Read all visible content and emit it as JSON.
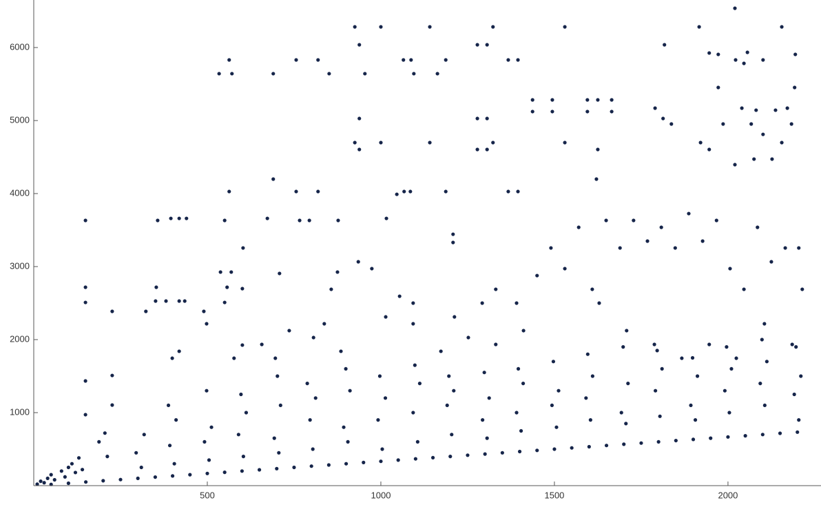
{
  "chart_data": {
    "type": "scatter",
    "color": "#16254a",
    "grid": false,
    "xlim": [
      0,
      2268
    ],
    "ylim": [
      0,
      6651
    ],
    "xticks": [
      500,
      1000,
      1500,
      2000
    ],
    "yticks": [
      1000,
      2000,
      3000,
      4000,
      5000,
      6000
    ],
    "x": [
      149,
      149,
      149,
      149,
      149,
      226,
      226,
      226,
      534,
      563,
      571,
      550,
      563,
      538,
      569,
      557,
      550,
      357,
      395,
      419,
      440,
      353,
      351,
      323,
      381,
      419,
      435,
      490,
      603,
      601,
      601,
      690,
      690,
      708,
      673,
      756,
      819,
      851,
      756,
      819,
      766,
      794,
      877,
      925,
      938,
      954,
      938,
      925,
      938,
      1000,
      1000,
      1016,
      1065,
      1087,
      1095,
      1046,
      1067,
      1085,
      1141,
      1141,
      1163,
      1187,
      1187,
      1208,
      1208,
      1278,
      1306,
      1323,
      1278,
      1306,
      1278,
      1306,
      1323,
      1367,
      1395,
      1367,
      1395,
      1530,
      1530,
      1437,
      1437,
      1494,
      1494,
      1595,
      1595,
      1625,
      1665,
      1665,
      1625,
      1621,
      1817,
      1790,
      1813,
      1837,
      1917,
      1946,
      1972,
      1972,
      1986,
      1921,
      1946,
      2020,
      2020,
      2022,
      2046,
      2056,
      2040,
      2067,
      2081,
      2075,
      2101,
      2101,
      2127,
      2137,
      2155,
      2155,
      2171,
      2183,
      2192,
      2194,
      1054,
      1093,
      935,
      974,
      875,
      857,
      837,
      885,
      806,
      1212,
      1292,
      1331,
      1391,
      1450,
      1490,
      1530,
      1570,
      1609,
      1649,
      1689,
      1728,
      1768,
      1808,
      1848,
      1887,
      1927,
      1967,
      2006,
      2046,
      2085,
      2125,
      2165,
      2204,
      2214,
      1629,
      1708,
      1788,
      1867,
      1946,
      2024,
      2105,
      2185,
      1411,
      1331,
      1252,
      1173,
      1093,
      1014,
      657,
      736,
      696,
      577,
      498,
      419,
      399,
      212,
      188,
      205,
      310,
      295,
      318,
      405,
      392,
      410,
      388,
      505,
      492,
      512,
      498,
      604,
      590,
      612,
      597,
      706,
      693,
      711,
      702,
      804,
      796,
      812,
      788,
      905,
      893,
      911,
      899,
      1004,
      992,
      1013,
      997,
      1106,
      1093,
      1112,
      1098,
      1204,
      1191,
      1210,
      1196,
      1306,
      1293,
      1312,
      1298,
      1404,
      1391,
      1410,
      1396,
      1506,
      1493,
      1512,
      1497,
      1604,
      1591,
      1610,
      1596,
      1706,
      1693,
      1712,
      1698,
      1804,
      1791,
      1810,
      1796,
      1906,
      1893,
      1912,
      1898,
      2004,
      1991,
      2010,
      1996,
      2106,
      2093,
      2112,
      2098,
      2204,
      2191,
      2210,
      2196,
      10,
      20,
      30,
      40,
      50,
      60,
      80,
      90,
      100,
      110,
      120,
      130,
      140,
      50,
      100,
      150,
      200,
      250,
      300,
      350,
      400,
      450,
      500,
      550,
      600,
      650,
      700,
      750,
      800,
      850,
      900,
      950,
      1000,
      1050,
      1100,
      1150,
      1200,
      1250,
      1300,
      1350,
      1400,
      1450,
      1500,
      1550,
      1600,
      1650,
      1700,
      1750,
      1800,
      1850,
      1900,
      1950,
      2000,
      2050,
      2100,
      2150,
      2200
    ],
    "values": [
      3632,
      2717,
      2509,
      1434,
      972,
      2387,
      1509,
      1104,
      5642,
      5830,
      5642,
      3632,
      4028,
      2925,
      2925,
      2717,
      2509,
      3632,
      3660,
      3660,
      3660,
      2717,
      2528,
      2387,
      2528,
      2528,
      2528,
      2387,
      3255,
      2698,
      1925,
      5642,
      4198,
      2906,
      3660,
      5830,
      5830,
      5642,
      4028,
      4028,
      3632,
      3632,
      3632,
      6283,
      6038,
      5642,
      5028,
      4698,
      4604,
      6283,
      4698,
      3660,
      5830,
      5830,
      5642,
      3990,
      4028,
      4028,
      6283,
      4698,
      5642,
      5830,
      4028,
      3443,
      3330,
      6038,
      6038,
      6283,
      5028,
      5028,
      4604,
      4604,
      4698,
      5830,
      5830,
      4028,
      4028,
      6283,
      4698,
      5283,
      5123,
      5283,
      5123,
      5283,
      5123,
      5283,
      5283,
      5123,
      4604,
      4198,
      6038,
      5170,
      5028,
      4953,
      6283,
      5925,
      5906,
      5453,
      4953,
      4698,
      4604,
      6538,
      4396,
      5830,
      5783,
      5934,
      5170,
      4953,
      5142,
      4472,
      5830,
      4811,
      4472,
      5142,
      4698,
      6283,
      5170,
      4953,
      5453,
      5906,
      2594,
      2500,
      3066,
      2972,
      2925,
      2689,
      2217,
      1840,
      2028,
      2311,
      2500,
      2689,
      2500,
      2877,
      3255,
      2972,
      3538,
      2689,
      3632,
      3255,
      3632,
      3349,
      3538,
      3255,
      3726,
      3349,
      3632,
      2972,
      2689,
      3538,
      3066,
      3255,
      3255,
      2689,
      2500,
      2123,
      1934,
      1745,
      1934,
      1745,
      2217,
      1934,
      2123,
      1934,
      2028,
      1840,
      2217,
      2311,
      1934,
      2123,
      1745,
      1745,
      2217,
      1840,
      1745,
      400,
      600,
      720,
      250,
      450,
      700,
      300,
      550,
      900,
      1100,
      350,
      600,
      800,
      1300,
      400,
      700,
      1000,
      1250,
      450,
      650,
      1100,
      1500,
      500,
      900,
      1200,
      1400,
      600,
      800,
      1300,
      1600,
      500,
      900,
      1200,
      1500,
      600,
      1000,
      1400,
      1650,
      700,
      1100,
      1300,
      1500,
      650,
      900,
      1200,
      1550,
      750,
      1000,
      1400,
      1600,
      800,
      1100,
      1300,
      1700,
      900,
      1200,
      1500,
      1800,
      850,
      1000,
      1400,
      1900,
      950,
      1300,
      1600,
      1850,
      900,
      1100,
      1500,
      1750,
      1000,
      1300,
      1600,
      1900,
      1100,
      1400,
      1700,
      2000,
      900,
      1250,
      1500,
      1900,
      20,
      60,
      40,
      100,
      150,
      80,
      200,
      120,
      250,
      300,
      180,
      380,
      220,
      17,
      33,
      50,
      67,
      83,
      100,
      117,
      133,
      150,
      167,
      183,
      200,
      217,
      233,
      250,
      267,
      283,
      300,
      317,
      333,
      350,
      367,
      383,
      400,
      417,
      433,
      450,
      467,
      483,
      500,
      517,
      533,
      550,
      567,
      583,
      600,
      617,
      633,
      650,
      667,
      683,
      700,
      717,
      733
    ]
  }
}
